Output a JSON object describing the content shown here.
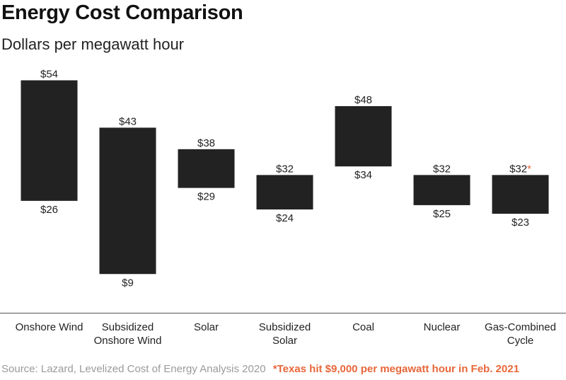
{
  "colors": {
    "bar": "#222222",
    "axis": "#555555",
    "accent": "#e8673a",
    "text": "#222222",
    "muted": "#9a9a9a"
  },
  "chart_data": {
    "type": "bar",
    "subtype": "floating-range",
    "title": "Energy Cost Comparison",
    "subtitle": "Dollars per megawatt hour",
    "xlabel": "",
    "ylabel": "",
    "ylim": [
      0,
      60
    ],
    "grid": false,
    "legend": "none",
    "categories": [
      [
        "Onshore Wind"
      ],
      [
        "Subsidized",
        "Onshore Wind"
      ],
      [
        "Solar"
      ],
      [
        "Subsidized",
        "Solar"
      ],
      [
        "Coal"
      ],
      [
        "Nuclear"
      ],
      [
        "Gas-Combined",
        "Cycle"
      ]
    ],
    "high": [
      54,
      43,
      38,
      32,
      48,
      32,
      32
    ],
    "low": [
      26,
      9,
      29,
      24,
      34,
      25,
      23
    ],
    "high_labels": [
      "$54",
      "$43",
      "$38",
      "$32",
      "$48",
      "$32",
      "$32"
    ],
    "low_labels": [
      "$26",
      "$9",
      "$29",
      "$24",
      "$34",
      "$25",
      "$23"
    ],
    "asterisk": {
      "index": 6,
      "mark": "*"
    }
  },
  "footer": {
    "source": "Source: Lazard, Levelized Cost of Energy Analysis 2020",
    "note": "*Texas hit $9,000 per megawatt hour in Feb. 2021"
  }
}
